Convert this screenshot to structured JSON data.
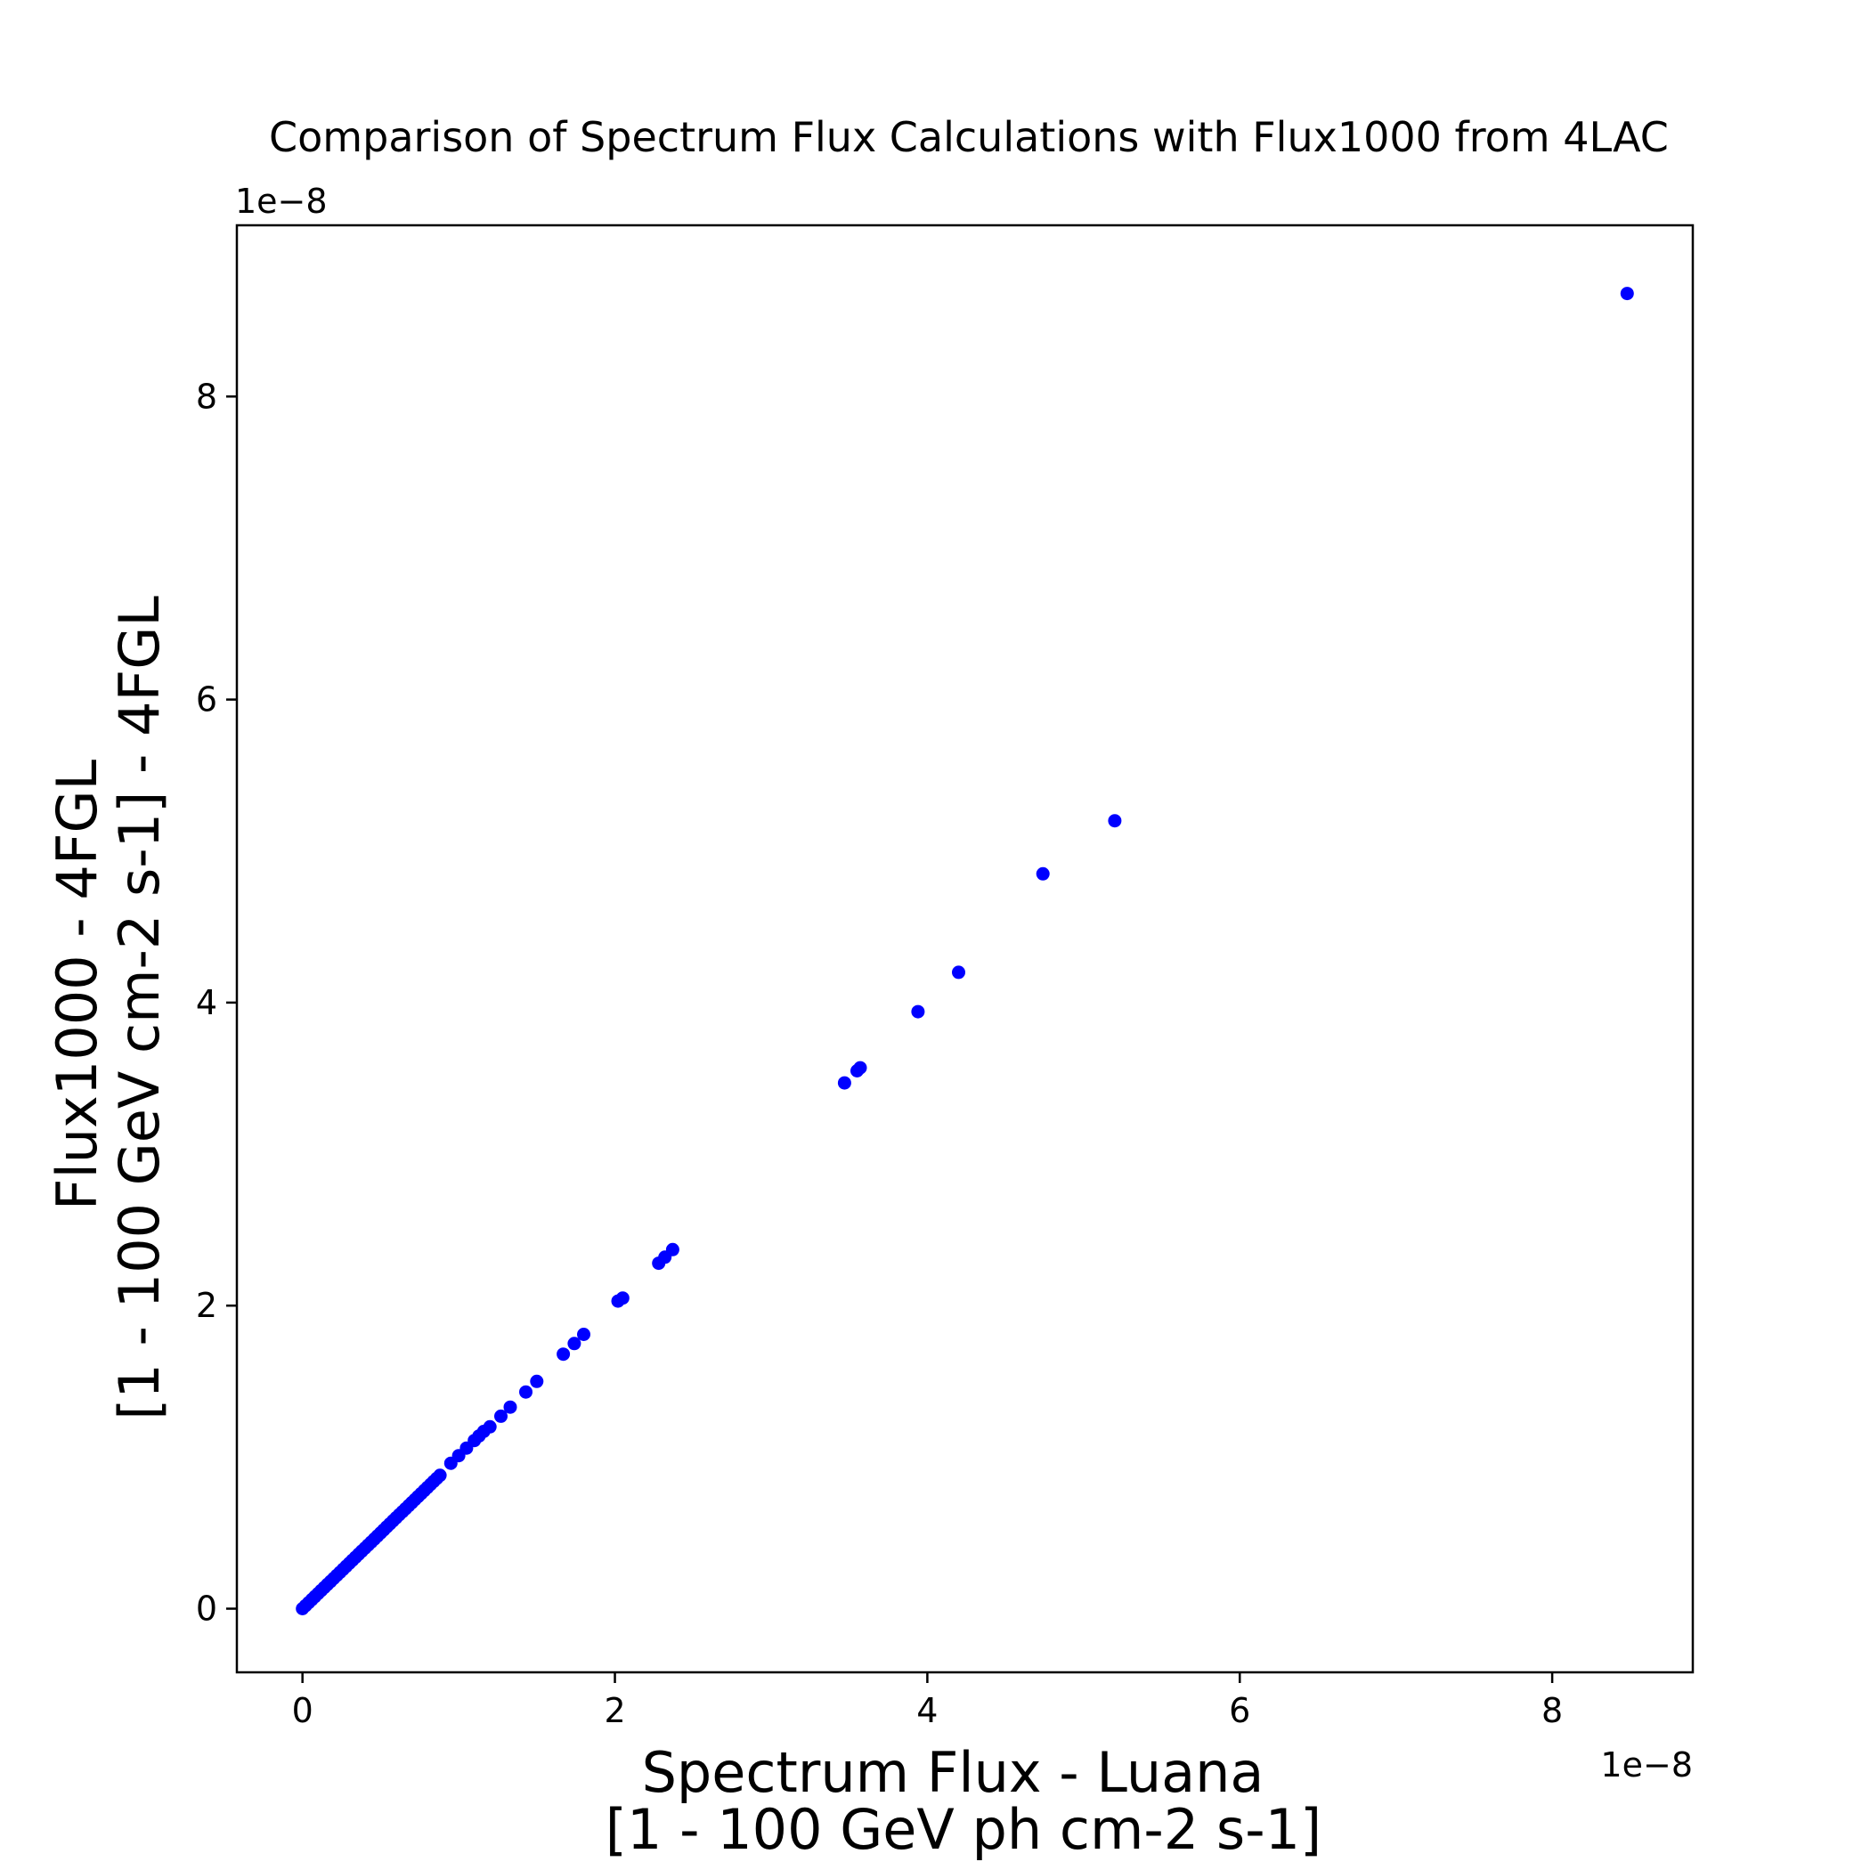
{
  "chart_data": {
    "type": "scatter",
    "title": "Comparison of Spectrum Flux Calculations with Flux1000 from 4LAC",
    "xlabel_lines": [
      "Spectrum Flux - Luana",
      "[1 - 100 GeV ph cm-2 s-1]"
    ],
    "ylabel_lines": [
      "Flux1000 - 4FGL",
      "[1 - 100 GeV cm-2 s-1] - 4FGL"
    ],
    "x_offset_label": "1e−8",
    "y_offset_label": "1e−8",
    "xlim": [
      -0.42,
      8.9
    ],
    "ylim": [
      -0.42,
      9.13
    ],
    "x_ticks": [
      0,
      2,
      4,
      6,
      8
    ],
    "y_ticks": [
      0,
      2,
      4,
      6,
      8
    ],
    "grid": false,
    "marker_color": "#0000ff",
    "series": [
      {
        "x": [
          0.0,
          0.02,
          0.04,
          0.06,
          0.08,
          0.1,
          0.12,
          0.14,
          0.16,
          0.18,
          0.2,
          0.22,
          0.24,
          0.26,
          0.28,
          0.3,
          0.32,
          0.34,
          0.36,
          0.38,
          0.4,
          0.42,
          0.44,
          0.46,
          0.48,
          0.5,
          0.52,
          0.54,
          0.56,
          0.58,
          0.6,
          0.62,
          0.64,
          0.66,
          0.68,
          0.7,
          0.72,
          0.74,
          0.76,
          0.78,
          0.8,
          0.82,
          0.84,
          0.86,
          0.88,
          0.95,
          1.0,
          1.05,
          1.1,
          1.13,
          1.16,
          1.2,
          1.27,
          1.33,
          1.43,
          1.5,
          1.67,
          1.74,
          1.8,
          2.02,
          2.05,
          2.28,
          2.32,
          2.37,
          3.47,
          3.55,
          3.57,
          3.94,
          4.2,
          4.74,
          5.2,
          8.48
        ],
        "y": [
          0.0,
          0.02,
          0.04,
          0.06,
          0.08,
          0.1,
          0.12,
          0.14,
          0.16,
          0.18,
          0.2,
          0.22,
          0.24,
          0.26,
          0.28,
          0.3,
          0.32,
          0.34,
          0.36,
          0.38,
          0.4,
          0.42,
          0.44,
          0.46,
          0.48,
          0.5,
          0.52,
          0.54,
          0.56,
          0.58,
          0.6,
          0.62,
          0.64,
          0.66,
          0.68,
          0.7,
          0.72,
          0.74,
          0.76,
          0.78,
          0.8,
          0.82,
          0.84,
          0.86,
          0.88,
          0.96,
          1.01,
          1.06,
          1.11,
          1.14,
          1.17,
          1.2,
          1.27,
          1.33,
          1.43,
          1.5,
          1.68,
          1.75,
          1.81,
          2.03,
          2.05,
          2.28,
          2.32,
          2.37,
          3.47,
          3.55,
          3.57,
          3.94,
          4.2,
          4.85,
          5.2,
          8.68
        ]
      }
    ]
  }
}
